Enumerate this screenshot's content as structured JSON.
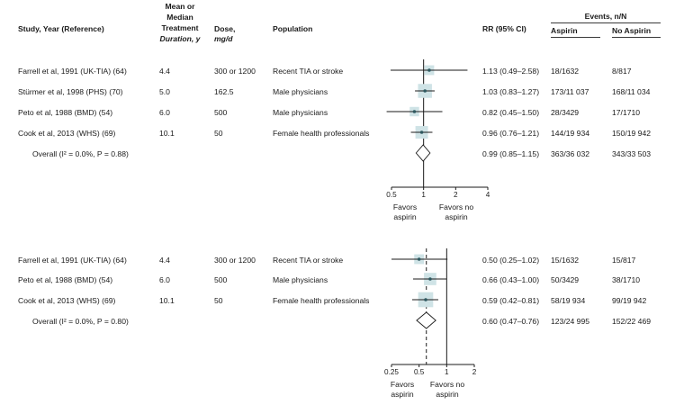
{
  "headers": {
    "study": "Study, Year (Reference)",
    "duration_lines": [
      "Mean or",
      "Median",
      "Treatment",
      "Duration, y"
    ],
    "dose_lines": [
      "Dose,",
      "mg/d"
    ],
    "population": "Population",
    "rr": "RR (95% CI)",
    "events": "Events, n/N",
    "aspirin": "Aspirin",
    "no_aspirin": "No Aspirin"
  },
  "panels": [
    {
      "rows": [
        {
          "study": "Farrell et al, 1991 (UK-TIA) (64)",
          "duration": "4.4",
          "dose": "300 or 1200",
          "population": "Recent TIA or stroke",
          "rr_text": "1.13 (0.49–2.58)",
          "aspirin": "18/1632",
          "no_aspirin": "8/817"
        },
        {
          "study": "Stürmer et al, 1998 (PHS) (70)",
          "duration": "5.0",
          "dose": "162.5",
          "population": "Male physicians",
          "rr_text": "1.03 (0.83–1.27)",
          "aspirin": "173/11 037",
          "no_aspirin": "168/11 034"
        },
        {
          "study": "Peto et al, 1988 (BMD) (54)",
          "duration": "6.0",
          "dose": "500",
          "population": "Male physicians",
          "rr_text": "0.82 (0.45–1.50)",
          "aspirin": "28/3429",
          "no_aspirin": "17/1710"
        },
        {
          "study": "Cook et al, 2013 (WHS) (69)",
          "duration": "10.1",
          "dose": "50",
          "population": "Female health professionals",
          "rr_text": "0.96 (0.76–1.21)",
          "aspirin": "144/19 934",
          "no_aspirin": "150/19 942"
        }
      ],
      "overall": {
        "label": "Overall (I² = 0.0%, P = 0.88)",
        "rr_text": "0.99 (0.85–1.15)",
        "aspirin": "363/36 032",
        "no_aspirin": "343/33 503"
      },
      "axis_tick_labels": [
        "0.5",
        "1",
        "2",
        "4"
      ],
      "favors_left": [
        "Favors",
        "aspirin"
      ],
      "favors_right": [
        "Favors no",
        "aspirin"
      ]
    },
    {
      "rows": [
        {
          "study": "Farrell et al, 1991 (UK-TIA) (64)",
          "duration": "4.4",
          "dose": "300 or 1200",
          "population": "Recent TIA or stroke",
          "rr_text": "0.50 (0.25–1.02)",
          "aspirin": "15/1632",
          "no_aspirin": "15/817"
        },
        {
          "study": "Peto et al, 1988 (BMD) (54)",
          "duration": "6.0",
          "dose": "500",
          "population": "Male physicians",
          "rr_text": "0.66 (0.43–1.00)",
          "aspirin": "50/3429",
          "no_aspirin": "38/1710"
        },
        {
          "study": "Cook et al, 2013 (WHS) (69)",
          "duration": "10.1",
          "dose": "50",
          "population": "Female health professionals",
          "rr_text": "0.59 (0.42–0.81)",
          "aspirin": "58/19 934",
          "no_aspirin": "99/19 942"
        }
      ],
      "overall": {
        "label": "Overall (I² = 0.0%, P = 0.80)",
        "rr_text": "0.60 (0.47–0.76)",
        "aspirin": "123/24 995",
        "no_aspirin": "152/22 469"
      },
      "axis_tick_labels": [
        "0.25",
        "0.5",
        "1",
        "2"
      ],
      "favors_left": [
        "Favors",
        "aspirin"
      ],
      "favors_right": [
        "Favors no",
        "aspirin"
      ]
    }
  ],
  "colors": {
    "box": "#cfe3e6",
    "point": "#2f5960",
    "line": "#1a1a1a"
  },
  "chart_data": [
    {
      "type": "forest",
      "scale": "log",
      "xlim": [
        0.5,
        4
      ],
      "ticks": [
        0.5,
        1,
        2,
        4
      ],
      "reference_line": 1,
      "studies": [
        {
          "label": "Farrell et al, 1991 (UK-TIA) (64)",
          "rr": 1.13,
          "lo": 0.49,
          "hi": 2.58,
          "weight": 0.12
        },
        {
          "label": "Stürmer et al, 1998 (PHS) (70)",
          "rr": 1.03,
          "lo": 0.83,
          "hi": 1.27,
          "weight": 0.46
        },
        {
          "label": "Peto et al, 1988 (BMD) (54)",
          "rr": 0.82,
          "lo": 0.45,
          "hi": 1.5,
          "weight": 0.1
        },
        {
          "label": "Cook et al, 2013 (WHS) (69)",
          "rr": 0.96,
          "lo": 0.76,
          "hi": 1.21,
          "weight": 0.32
        }
      ],
      "overall": {
        "rr": 0.99,
        "lo": 0.85,
        "hi": 1.15
      }
    },
    {
      "type": "forest",
      "scale": "log",
      "xlim": [
        0.25,
        2
      ],
      "ticks": [
        0.25,
        0.5,
        1,
        2
      ],
      "reference_line": 1,
      "studies": [
        {
          "label": "Farrell et al, 1991 (UK-TIA) (64)",
          "rr": 0.5,
          "lo": 0.25,
          "hi": 1.02,
          "weight": 0.12
        },
        {
          "label": "Peto et al, 1988 (BMD) (54)",
          "rr": 0.66,
          "lo": 0.43,
          "hi": 1.0,
          "weight": 0.3
        },
        {
          "label": "Cook et al, 2013 (WHS) (69)",
          "rr": 0.59,
          "lo": 0.42,
          "hi": 0.81,
          "weight": 0.58
        }
      ],
      "overall": {
        "rr": 0.6,
        "lo": 0.47,
        "hi": 0.76
      }
    }
  ]
}
